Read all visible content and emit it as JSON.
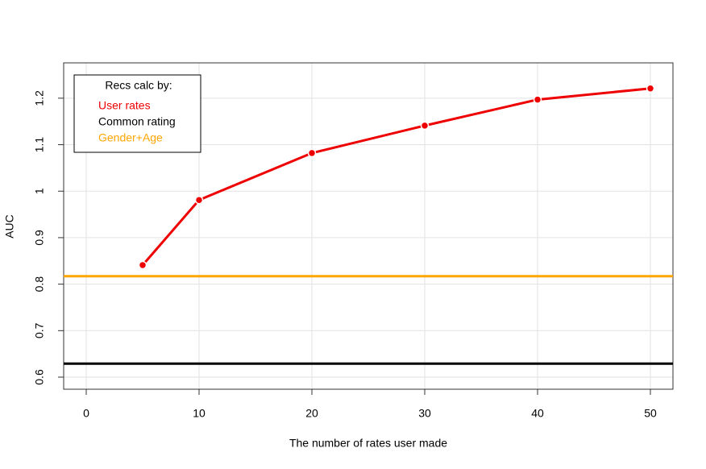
{
  "chart_data": {
    "type": "line",
    "xlabel": "The number of rates user made",
    "ylabel": "AUC",
    "legend_title": "Recs calc by:",
    "legend": "top-left",
    "grid": true,
    "xlim": [
      -2,
      52
    ],
    "xticks": [
      0,
      10,
      20,
      30,
      40,
      50
    ],
    "ylim": [
      0.574,
      1.276
    ],
    "yticks": [
      0.6,
      0.7,
      0.8,
      0.9,
      1.0,
      1.1,
      1.2
    ],
    "x": [
      5,
      10,
      20,
      30,
      40,
      50
    ],
    "series": [
      {
        "name": "User rates",
        "color": "#ee0000",
        "values": [
          0.841,
          0.981,
          1.082,
          1.141,
          1.197,
          1.221
        ]
      },
      {
        "name": "Common rating",
        "color": "#000000",
        "value": 0.629
      },
      {
        "name": "Gender+Age",
        "color": "#ffa500",
        "value": 0.817
      }
    ]
  }
}
